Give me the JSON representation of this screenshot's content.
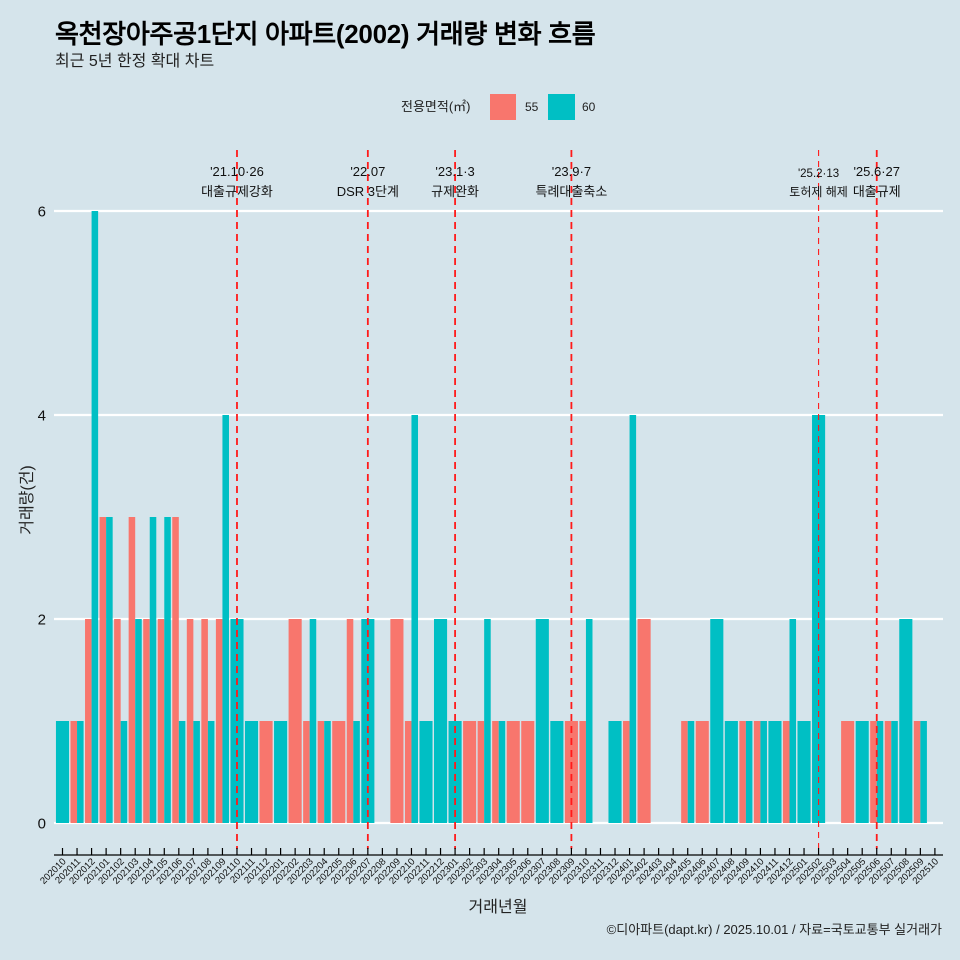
{
  "header": {
    "title": "옥천장아주공1단지 아파트(2002) 거래량 변화 흐름",
    "subtitle": "최근 5년 한정 확대 차트"
  },
  "legend": {
    "title": "전용면적(㎡)",
    "items": [
      {
        "label": "55",
        "color": "#F8766D"
      },
      {
        "label": "60",
        "color": "#00BFC4"
      }
    ]
  },
  "caption": "©디아파트(dapt.kr) / 2025.10.01 / 자료=국토교통부 실거래가",
  "colors": {
    "background": "#D5E4EB",
    "gridline": "#FFFFFF",
    "annotation_line": "#FF1A1A",
    "axis": "#000000"
  },
  "chart_data": {
    "type": "bar",
    "title": "옥천장아주공1단지 아파트(2002) 거래량 변화 흐름",
    "subtitle": "최근 5년 한정 확대 차트",
    "xlabel": "거래년월",
    "ylabel": "거래량(건)",
    "ylim": [
      0,
      6
    ],
    "yticks": [
      0,
      2,
      4,
      6
    ],
    "grid": "horizontal major lines on",
    "legend_position": "top",
    "bar_mode": "dodge",
    "categories": [
      "202010",
      "202011",
      "202012",
      "202101",
      "202102",
      "202103",
      "202104",
      "202105",
      "202106",
      "202107",
      "202108",
      "202109",
      "202110",
      "202111",
      "202112",
      "202201",
      "202202",
      "202203",
      "202204",
      "202205",
      "202206",
      "202207",
      "202208",
      "202209",
      "202210",
      "202211",
      "202212",
      "202301",
      "202302",
      "202303",
      "202304",
      "202305",
      "202306",
      "202307",
      "202308",
      "202309",
      "202310",
      "202311",
      "202312",
      "202401",
      "202402",
      "202403",
      "202404",
      "202405",
      "202406",
      "202407",
      "202408",
      "202409",
      "202410",
      "202411",
      "202412",
      "202501",
      "202502",
      "202503",
      "202504",
      "202505",
      "202506",
      "202507",
      "202508",
      "202509",
      "202510"
    ],
    "series": [
      {
        "name": "55",
        "color": "#F8766D",
        "values": [
          null,
          1,
          2,
          3,
          2,
          3,
          2,
          2,
          3,
          2,
          2,
          2,
          null,
          null,
          1,
          null,
          2,
          1,
          1,
          1,
          2,
          null,
          null,
          2,
          1,
          null,
          null,
          null,
          1,
          1,
          1,
          1,
          1,
          null,
          null,
          1,
          1,
          null,
          null,
          1,
          2,
          null,
          null,
          1,
          1,
          null,
          null,
          1,
          1,
          null,
          1,
          null,
          null,
          null,
          1,
          null,
          1,
          1,
          null,
          1,
          null
        ]
      },
      {
        "name": "60",
        "color": "#00BFC4",
        "values": [
          1,
          1,
          6,
          3,
          1,
          2,
          3,
          3,
          1,
          1,
          1,
          4,
          2,
          1,
          null,
          1,
          null,
          2,
          1,
          null,
          1,
          2,
          null,
          null,
          4,
          1,
          2,
          1,
          null,
          2,
          1,
          null,
          null,
          2,
          1,
          null,
          2,
          null,
          1,
          4,
          null,
          null,
          null,
          1,
          null,
          2,
          1,
          1,
          1,
          1,
          2,
          1,
          4,
          null,
          null,
          1,
          1,
          1,
          2,
          1,
          null
        ]
      }
    ],
    "annotations": [
      {
        "category": "202110",
        "date": "'21.10·26",
        "label": "대출규제강화"
      },
      {
        "category": "202207",
        "date": "'22.07",
        "label": "DSR 3단계"
      },
      {
        "category": "202301",
        "date": "'23.1·3",
        "label": "규제완화"
      },
      {
        "category": "202309",
        "date": "'23.9·7",
        "label": "특례대출축소"
      },
      {
        "category": "202502",
        "date": "'25.2·13",
        "label": "토허제 해제",
        "minor": true
      },
      {
        "category": "202506",
        "date": "'25.6·27",
        "label": "대출규제"
      }
    ]
  }
}
